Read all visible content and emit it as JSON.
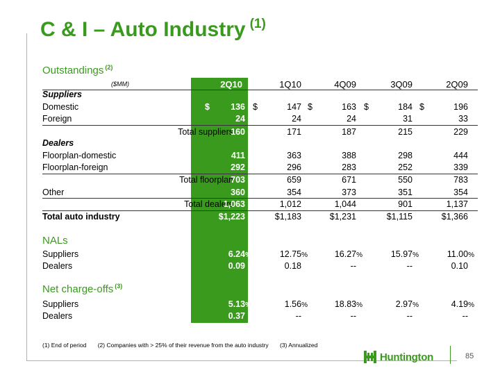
{
  "title": "C & I – Auto Industry",
  "title_note": "(1)",
  "outstandings": {
    "label": "Outstandings",
    "note": "(2)"
  },
  "units": "($MM)",
  "columns": [
    "2Q10",
    "1Q10",
    "4Q09",
    "3Q09",
    "2Q09"
  ],
  "suppliers_header": "Suppliers",
  "domestic": {
    "label": "Domestic",
    "values": [
      "136",
      "147",
      "163",
      "184",
      "196"
    ]
  },
  "foreign": {
    "label": "Foreign",
    "values": [
      "24",
      "24",
      "24",
      "31",
      "33"
    ]
  },
  "total_suppliers": {
    "label": "Total suppliers",
    "values": [
      "160",
      "171",
      "187",
      "215",
      "229"
    ]
  },
  "dealers_header": "Dealers",
  "floorplan_domestic": {
    "label": "Floorplan-domestic",
    "values": [
      "411",
      "363",
      "388",
      "298",
      "444"
    ]
  },
  "floorplan_foreign": {
    "label": "Floorplan-foreign",
    "values": [
      "292",
      "296",
      "283",
      "252",
      "339"
    ]
  },
  "total_floorplan": {
    "label": "Total floorplan",
    "values": [
      "703",
      "659",
      "671",
      "550",
      "783"
    ]
  },
  "other": {
    "label": "Other",
    "values": [
      "360",
      "354",
      "373",
      "351",
      "354"
    ]
  },
  "total_dealers": {
    "label": "Total dealers",
    "values": [
      "1,063",
      "1,012",
      "1,044",
      "901",
      "1,137"
    ]
  },
  "total_auto": {
    "label": "Total auto industry",
    "values": [
      "$1,223",
      "$1,183",
      "$1,231",
      "$1,115",
      "$1,366"
    ]
  },
  "currency": "$",
  "nals": {
    "label": "NALs",
    "suppliers": {
      "label": "Suppliers",
      "values": [
        "6.24",
        "12.75",
        "16.27",
        "15.97",
        "11.00"
      ]
    },
    "dealers": {
      "label": "Dealers",
      "values": [
        "0.09",
        "0.18",
        "--",
        "--",
        "0.10"
      ]
    }
  },
  "nco": {
    "label": "Net charge-offs",
    "note": "(3)",
    "suppliers": {
      "label": "Suppliers",
      "values": [
        "5.13",
        "1.56",
        "18.83",
        "2.97",
        "4.19"
      ]
    },
    "dealers": {
      "label": "Dealers",
      "values": [
        "0.37",
        "--",
        "--",
        "--",
        "--"
      ]
    }
  },
  "percent": "%",
  "footnotes": [
    "(1)  End of period",
    "(2)  Companies with > 25% of their revenue from the auto industry",
    "(3)  Annualized"
  ],
  "logo_text": "Huntington",
  "page_number": "85"
}
